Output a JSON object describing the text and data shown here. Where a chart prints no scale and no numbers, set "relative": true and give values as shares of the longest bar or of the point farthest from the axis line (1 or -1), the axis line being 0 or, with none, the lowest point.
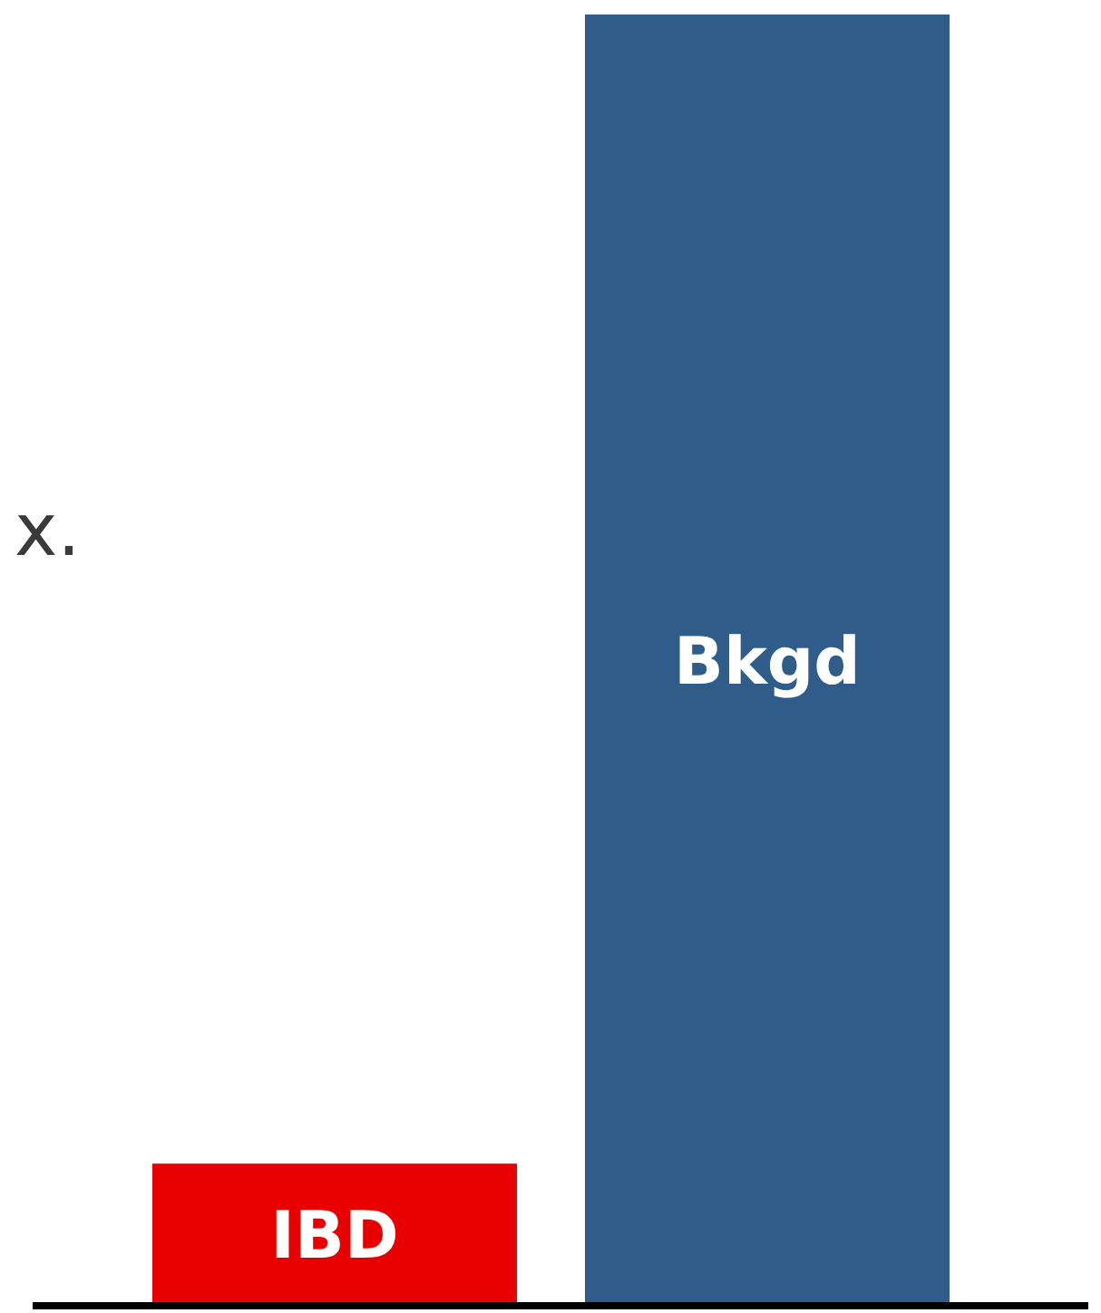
{
  "chart_data": {
    "type": "bar",
    "relative": true,
    "categories": [
      "IBD",
      "Bkgd"
    ],
    "values": [
      0.11,
      1
    ],
    "colors": [
      "#e80000",
      "#2f5c88"
    ],
    "annotations": [
      "x."
    ]
  }
}
